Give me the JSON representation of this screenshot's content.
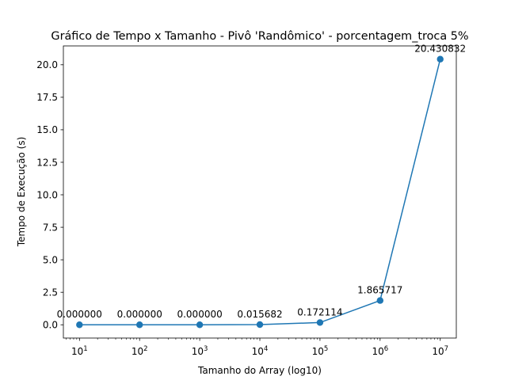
{
  "chart_data": {
    "type": "line",
    "title": "Gráfico de Tempo x Tamanho - Pivô 'Randômico' - porcentagem_troca 5%",
    "xlabel": "Tamanho do Array (log10)",
    "ylabel": "Tempo de Execução (s)",
    "x_scale": "log",
    "x": [
      10,
      100,
      1000,
      10000,
      100000,
      1000000,
      10000000
    ],
    "x_tick_labels": [
      {
        "base": "10",
        "exp": "1"
      },
      {
        "base": "10",
        "exp": "2"
      },
      {
        "base": "10",
        "exp": "3"
      },
      {
        "base": "10",
        "exp": "4"
      },
      {
        "base": "10",
        "exp": "5"
      },
      {
        "base": "10",
        "exp": "6"
      },
      {
        "base": "10",
        "exp": "7"
      }
    ],
    "y_ticks": [
      0.0,
      2.5,
      5.0,
      7.5,
      10.0,
      12.5,
      15.0,
      17.5,
      20.0
    ],
    "y_tick_labels": [
      "0.0",
      "2.5",
      "5.0",
      "7.5",
      "10.0",
      "12.5",
      "15.0",
      "17.5",
      "20.0"
    ],
    "xlim": [
      5.4,
      18500000
    ],
    "ylim": [
      -1.02,
      21.45
    ],
    "grid": false,
    "series": [
      {
        "values": [
          0.0,
          0.0,
          0.0,
          0.015682,
          0.172114,
          1.865717,
          20.430832
        ],
        "labels": [
          "0.000000",
          "0.000000",
          "0.000000",
          "0.015682",
          "0.172114",
          "1.865717",
          "20.430832"
        ],
        "color": "#1f77b4"
      }
    ]
  }
}
